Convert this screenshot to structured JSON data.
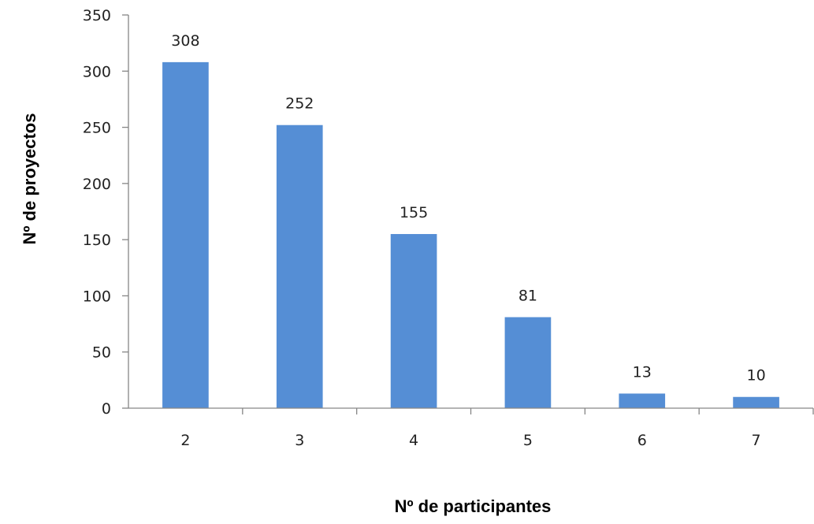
{
  "chart_data": {
    "type": "bar",
    "categories": [
      "2",
      "3",
      "4",
      "5",
      "6",
      "7"
    ],
    "values": [
      308,
      252,
      155,
      81,
      13,
      10
    ],
    "data_labels": [
      "308",
      "252",
      "155",
      "81",
      "13",
      "10"
    ],
    "title": "",
    "xlabel": "Nº de participantes",
    "ylabel": "Nº de proyectos",
    "ylim": [
      0,
      350
    ],
    "yticks": [
      0,
      50,
      100,
      150,
      200,
      250,
      300,
      350
    ],
    "ytick_labels": [
      "0",
      "50",
      "100",
      "150",
      "200",
      "250",
      "300",
      "350"
    ],
    "grid": false,
    "legend": "none",
    "bar_color": "#558ED5",
    "axis_color": "#868686"
  }
}
